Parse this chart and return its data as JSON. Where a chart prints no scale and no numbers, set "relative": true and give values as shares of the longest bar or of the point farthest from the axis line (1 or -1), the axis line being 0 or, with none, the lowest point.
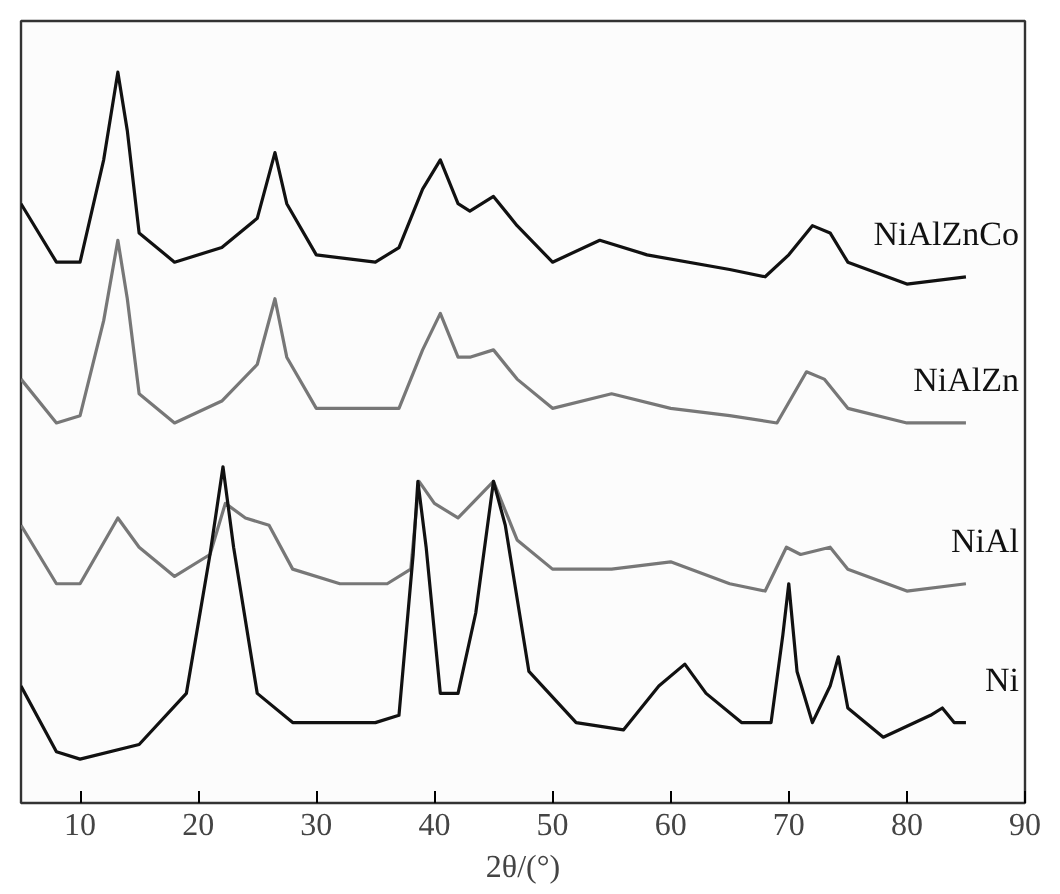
{
  "chart_data": {
    "type": "line",
    "relative": true,
    "xlabel": "2θ/(°)",
    "xlim": [
      5,
      90
    ],
    "xticks": [
      10,
      20,
      30,
      40,
      50,
      60,
      70,
      80,
      90
    ],
    "grid": false,
    "marker": "none",
    "line_style": "solid",
    "series": [
      {
        "name": "NiAlZnCo",
        "color": "#111111",
        "x": [
          5,
          8,
          10,
          12,
          13.2,
          14,
          15,
          18,
          22,
          25,
          26.5,
          27.5,
          30,
          35,
          37,
          39,
          40.5,
          42,
          43,
          45,
          47,
          50,
          54,
          58,
          65,
          68,
          70,
          72,
          73.5,
          75,
          80,
          85
        ],
        "values": [
          0.82,
          0.74,
          0.74,
          0.88,
          1.0,
          0.92,
          0.78,
          0.74,
          0.76,
          0.8,
          0.89,
          0.82,
          0.75,
          0.74,
          0.76,
          0.84,
          0.88,
          0.82,
          0.81,
          0.83,
          0.79,
          0.74,
          0.77,
          0.75,
          0.73,
          0.72,
          0.75,
          0.79,
          0.78,
          0.74,
          0.71,
          0.72
        ]
      },
      {
        "name": "NiAlZn",
        "color": "#777777",
        "x": [
          5,
          8,
          10,
          12,
          13.2,
          14,
          15,
          18,
          22,
          25,
          26.5,
          27.5,
          30,
          35,
          37,
          39,
          40.5,
          42,
          43,
          45,
          47,
          50,
          55,
          60,
          65,
          69,
          71.5,
          73,
          75,
          80,
          85
        ],
        "values": [
          0.58,
          0.52,
          0.53,
          0.66,
          0.77,
          0.69,
          0.56,
          0.52,
          0.55,
          0.6,
          0.69,
          0.61,
          0.54,
          0.54,
          0.54,
          0.62,
          0.67,
          0.61,
          0.61,
          0.62,
          0.58,
          0.54,
          0.56,
          0.54,
          0.53,
          0.52,
          0.59,
          0.58,
          0.54,
          0.52,
          0.52
        ]
      },
      {
        "name": "NiAl",
        "color": "#777777",
        "x": [
          5,
          8,
          10,
          13.2,
          15,
          18,
          21,
          22.3,
          24,
          26,
          28,
          32,
          36,
          38,
          38.7,
          40,
          42,
          45,
          47,
          50,
          55,
          60,
          65,
          68,
          69.8,
          71,
          73.5,
          75,
          80,
          85
        ],
        "values": [
          0.38,
          0.3,
          0.3,
          0.39,
          0.35,
          0.31,
          0.34,
          0.41,
          0.39,
          0.38,
          0.32,
          0.3,
          0.3,
          0.32,
          0.44,
          0.41,
          0.39,
          0.44,
          0.36,
          0.32,
          0.32,
          0.33,
          0.3,
          0.29,
          0.35,
          0.34,
          0.35,
          0.32,
          0.29,
          0.3
        ]
      },
      {
        "name": "Ni",
        "color": "#111111",
        "x": [
          5,
          8,
          10,
          15,
          19,
          21,
          22.1,
          23,
          25,
          28,
          35,
          37,
          38.2,
          38.6,
          39.3,
          40.5,
          42,
          43.5,
          45,
          46,
          48,
          52,
          56,
          59,
          61.2,
          63,
          66,
          68.5,
          69.5,
          70,
          70.7,
          72,
          73.5,
          74.2,
          75,
          78,
          82,
          83,
          84,
          85
        ],
        "values": [
          0.16,
          0.07,
          0.06,
          0.08,
          0.15,
          0.34,
          0.46,
          0.35,
          0.15,
          0.11,
          0.11,
          0.12,
          0.34,
          0.44,
          0.35,
          0.15,
          0.15,
          0.26,
          0.44,
          0.38,
          0.18,
          0.11,
          0.1,
          0.16,
          0.19,
          0.15,
          0.11,
          0.11,
          0.23,
          0.3,
          0.18,
          0.11,
          0.16,
          0.2,
          0.13,
          0.09,
          0.12,
          0.13,
          0.11,
          0.11
        ]
      }
    ]
  }
}
